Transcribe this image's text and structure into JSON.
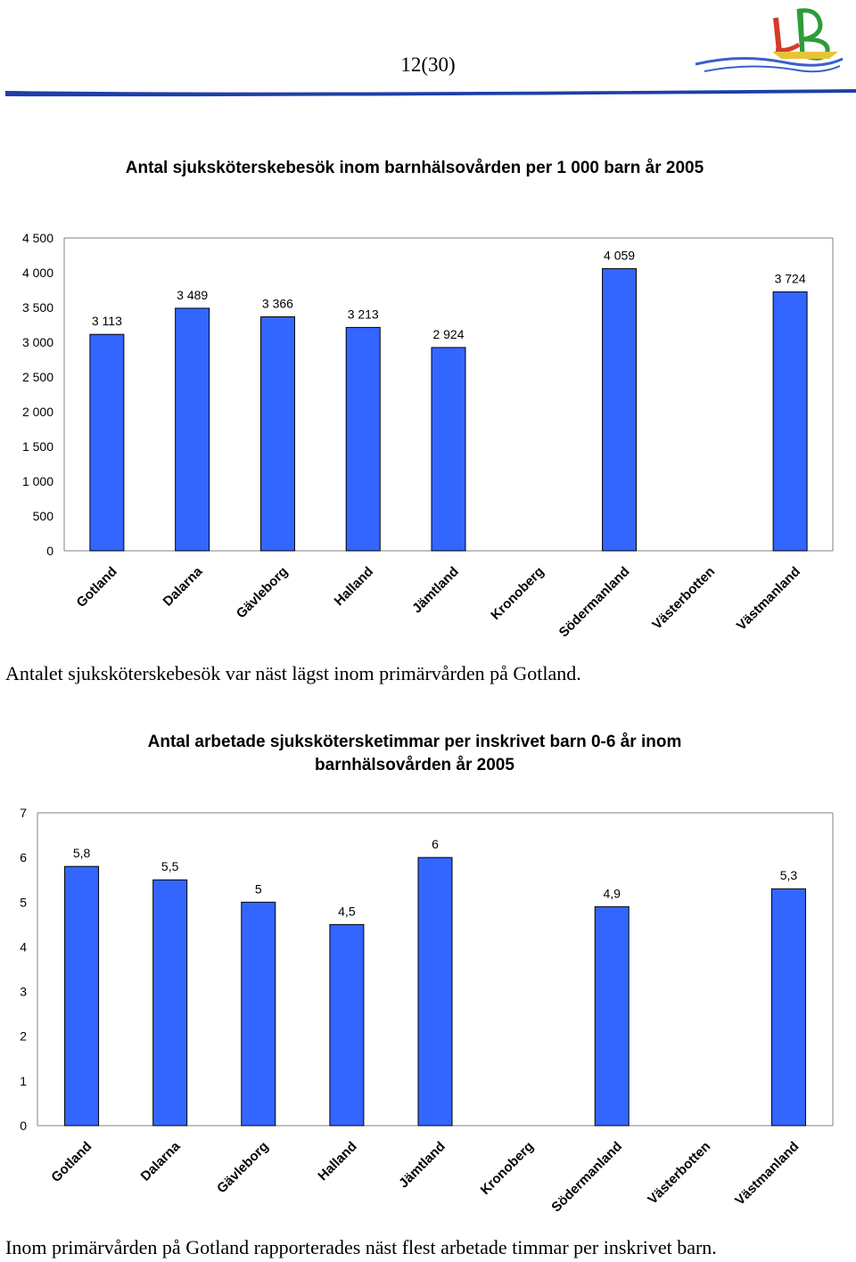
{
  "page": {
    "number": "12(30)"
  },
  "logo": {
    "text": "LB"
  },
  "captions": [
    "Antalet sjuksköterskebesök var näst lägst inom primärvården på Gotland.",
    "Inom primärvården på Gotland rapporterades näst flest arbetade timmar per inskrivet barn."
  ],
  "colors": {
    "bar_fill": "#3366ff",
    "bar_stroke": "#000000",
    "axis": "#808080"
  },
  "chart_data": [
    {
      "type": "bar",
      "title": "Antal sjuksköterskebesök inom barnhälsovården per 1 000 barn år 2005",
      "categories": [
        "Gotland",
        "Dalarna",
        "Gävleborg",
        "Halland",
        "Jämtland",
        "Kronoberg",
        "Södermanland",
        "Västerbotten",
        "Västmanland"
      ],
      "values": [
        3113,
        3489,
        3366,
        3213,
        2924,
        null,
        4059,
        null,
        3724
      ],
      "value_labels": [
        "3 113",
        "3 489",
        "3 366",
        "3 213",
        "2 924",
        "",
        "4 059",
        "",
        "3 724"
      ],
      "ylim": [
        0,
        4500
      ],
      "yticks": [
        0,
        500,
        1000,
        1500,
        2000,
        2500,
        3000,
        3500,
        4000,
        4500
      ],
      "ytick_labels": [
        "0",
        "500",
        "1 000",
        "1 500",
        "2 000",
        "2 500",
        "3 000",
        "3 500",
        "4 000",
        "4 500"
      ],
      "grid": false,
      "legend": false
    },
    {
      "type": "bar",
      "title": "Antal arbetade sjukskötersketimmar per inskrivet barn 0-6 år inom barnhälsovården år 2005",
      "categories": [
        "Gotland",
        "Dalarna",
        "Gävleborg",
        "Halland",
        "Jämtland",
        "Kronoberg",
        "Södermanland",
        "Västerbotten",
        "Västmanland"
      ],
      "values": [
        5.8,
        5.5,
        5,
        4.5,
        6,
        null,
        4.9,
        null,
        5.3
      ],
      "value_labels": [
        "5,8",
        "5,5",
        "5",
        "4,5",
        "6",
        "",
        "4,9",
        "",
        "5,3"
      ],
      "ylim": [
        0,
        7
      ],
      "yticks": [
        0,
        1,
        2,
        3,
        4,
        5,
        6,
        7
      ],
      "ytick_labels": [
        "0",
        "1",
        "2",
        "3",
        "4",
        "5",
        "6",
        "7"
      ],
      "grid": false,
      "legend": false
    }
  ]
}
